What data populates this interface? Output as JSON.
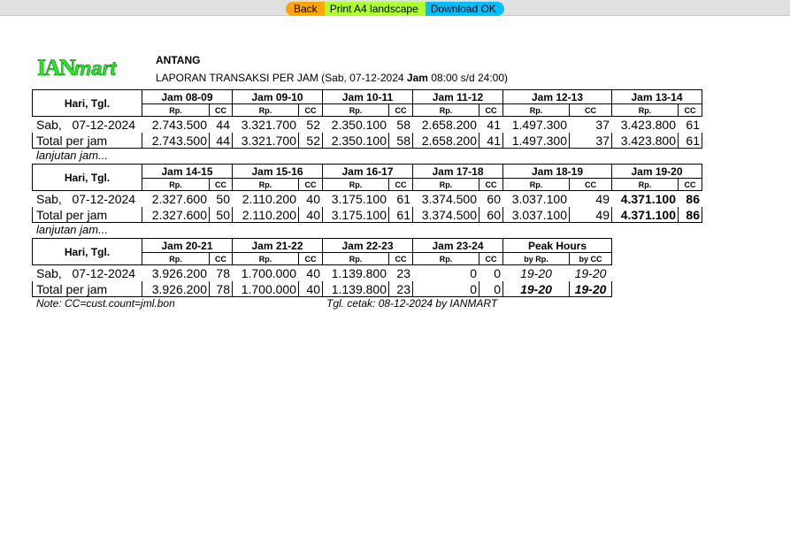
{
  "toolbar": {
    "back": "Back",
    "print": "Print A4 landscape",
    "download": "Download OK"
  },
  "header": {
    "logo_text": "IANmart",
    "store": "ANTANG",
    "title_prefix": "LAPORAN TRANSAKSI PER JAM (Sab, 07-12-2024 ",
    "title_bold": "Jam",
    "title_suffix": " 08:00 s/d 24:00)"
  },
  "labels": {
    "day_col": "Hari, Tgl.",
    "rp": "Rp.",
    "cc": "CC",
    "day": "Sab,",
    "date": "07-12-2024",
    "total": "Total per jam",
    "continued": "lanjutan jam...",
    "peak": "Peak Hours",
    "by_rp": "by Rp.",
    "by_cc": "by CC"
  },
  "blocks": [
    {
      "hours": [
        {
          "label": "Jam 08-09",
          "rp": "2.743.500",
          "cc": "44"
        },
        {
          "label": "Jam 09-10",
          "rp": "3.321.700",
          "cc": "52"
        },
        {
          "label": "Jam 10-11",
          "rp": "2.350.100",
          "cc": "58"
        },
        {
          "label": "Jam 11-12",
          "rp": "2.658.200",
          "cc": "41"
        },
        {
          "label": "Jam 12-13",
          "rp": "1.497.300",
          "cc": "37"
        },
        {
          "label": "Jam 13-14",
          "rp": "3.423.800",
          "cc": "61"
        }
      ]
    },
    {
      "hours": [
        {
          "label": "Jam 14-15",
          "rp": "2.327.600",
          "cc": "50"
        },
        {
          "label": "Jam 15-16",
          "rp": "2.110.200",
          "cc": "40"
        },
        {
          "label": "Jam 16-17",
          "rp": "3.175.100",
          "cc": "61"
        },
        {
          "label": "Jam 17-18",
          "rp": "3.374.500",
          "cc": "60"
        },
        {
          "label": "Jam 18-19",
          "rp": "3.037.100",
          "cc": "49"
        },
        {
          "label": "Jam 19-20",
          "rp": "4.371.100",
          "cc": "86",
          "peak": true
        }
      ]
    },
    {
      "hours": [
        {
          "label": "Jam 20-21",
          "rp": "3.926.200",
          "cc": "78"
        },
        {
          "label": "Jam 21-22",
          "rp": "1.700.000",
          "cc": "40"
        },
        {
          "label": "Jam 22-23",
          "rp": "1.139.800",
          "cc": "23"
        },
        {
          "label": "Jam 23-24",
          "rp": "0",
          "cc": "0"
        }
      ],
      "peak": {
        "by_rp": "19-20",
        "by_cc": "19-20"
      }
    }
  ],
  "footer": {
    "note": "Note: CC=cust.count=jml.bon",
    "printed": "Tgl. cetak: 08-12-2024 by IANMART"
  }
}
